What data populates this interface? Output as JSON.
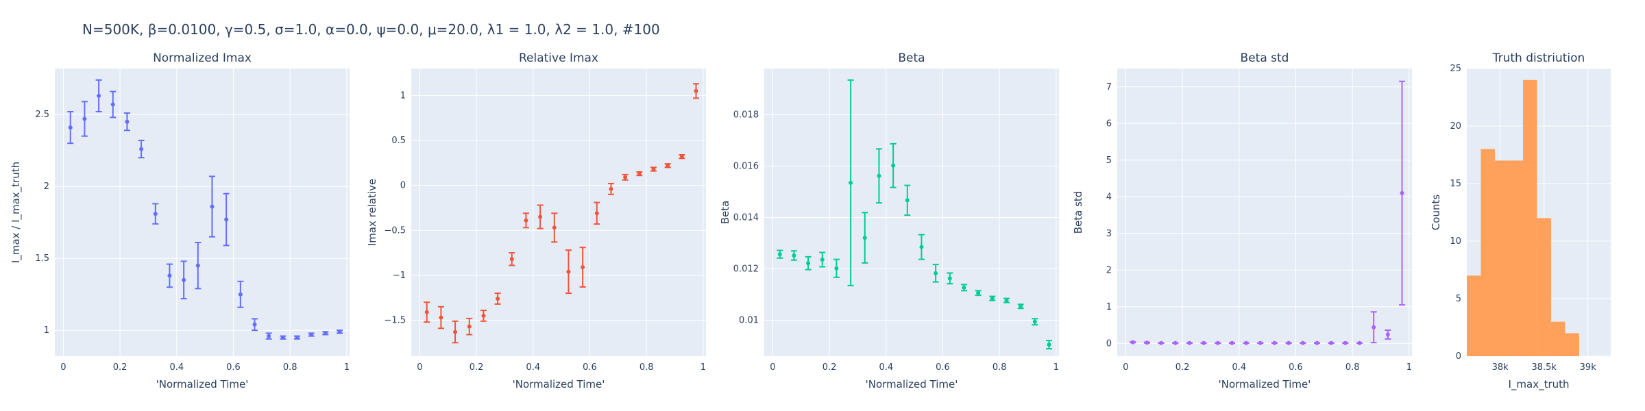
{
  "figure": {
    "suptitle": "N=500K, β=0.0100, γ=0.5, σ=1.0,  α=0.0, ψ=0.0, μ=20.0, λ1 = 1.0, λ2 = 1.0, #100"
  },
  "chart_data": [
    {
      "type": "scatter",
      "title": "Normalized Imax",
      "xlabel": "'Normalized Time'",
      "ylabel": "I_max / I_max_truth",
      "color": "#636efa",
      "xlim": [
        -0.03,
        1.01
      ],
      "ylim": [
        0.82,
        2.82
      ],
      "xticks": [
        0,
        0.2,
        0.4,
        0.6,
        0.8,
        1
      ],
      "xtick_labels": [
        "0",
        "0.2",
        "0.4",
        "0.6",
        "0.8",
        "1"
      ],
      "yticks": [
        1,
        1.5,
        2,
        2.5
      ],
      "ytick_labels": [
        "1",
        "1.5",
        "2",
        "2.5"
      ],
      "x": [
        0.025,
        0.075,
        0.125,
        0.175,
        0.225,
        0.275,
        0.325,
        0.375,
        0.425,
        0.475,
        0.525,
        0.575,
        0.625,
        0.675,
        0.725,
        0.775,
        0.825,
        0.875,
        0.925,
        0.975
      ],
      "y": [
        2.41,
        2.47,
        2.63,
        2.57,
        2.45,
        2.26,
        1.81,
        1.38,
        1.35,
        1.45,
        1.86,
        1.77,
        1.25,
        1.04,
        0.96,
        0.95,
        0.95,
        0.97,
        0.98,
        0.99
      ],
      "error": [
        0.11,
        0.12,
        0.11,
        0.09,
        0.06,
        0.06,
        0.07,
        0.08,
        0.13,
        0.16,
        0.21,
        0.18,
        0.09,
        0.04,
        0.02,
        0.01,
        0.01,
        0.01,
        0.01,
        0.01
      ]
    },
    {
      "type": "scatter",
      "title": "Relative Imax",
      "xlabel": "'Normalized Time'",
      "ylabel": "Imax relative",
      "color": "#ef553b",
      "xlim": [
        -0.03,
        1.01
      ],
      "ylim": [
        -1.9,
        1.3
      ],
      "xticks": [
        0,
        0.2,
        0.4,
        0.6,
        0.8,
        1
      ],
      "xtick_labels": [
        "0",
        "0.2",
        "0.4",
        "0.6",
        "0.8",
        "1"
      ],
      "yticks": [
        -1.5,
        -1,
        -0.5,
        0,
        0.5,
        1
      ],
      "ytick_labels": [
        "−1.5",
        "−1",
        "−0.5",
        "0",
        "0.5",
        "1"
      ],
      "x": [
        0.025,
        0.075,
        0.125,
        0.175,
        0.225,
        0.275,
        0.325,
        0.375,
        0.425,
        0.475,
        0.525,
        0.575,
        0.625,
        0.675,
        0.725,
        0.775,
        0.825,
        0.875,
        0.925,
        0.975
      ],
      "y": [
        -1.41,
        -1.47,
        -1.63,
        -1.57,
        -1.45,
        -1.26,
        -0.82,
        -0.39,
        -0.35,
        -0.47,
        -0.96,
        -0.91,
        -0.31,
        -0.04,
        0.09,
        0.13,
        0.18,
        0.22,
        0.32,
        1.05
      ],
      "error": [
        0.11,
        0.12,
        0.12,
        0.09,
        0.06,
        0.06,
        0.07,
        0.08,
        0.13,
        0.16,
        0.24,
        0.22,
        0.12,
        0.06,
        0.03,
        0.02,
        0.02,
        0.02,
        0.02,
        0.08
      ]
    },
    {
      "type": "scatter",
      "title": "Beta",
      "xlabel": "'Normalized Time'",
      "ylabel": "Beta",
      "color": "#00cc96",
      "xlim": [
        -0.03,
        1.01
      ],
      "ylim": [
        0.0086,
        0.0198
      ],
      "xticks": [
        0,
        0.2,
        0.4,
        0.6,
        0.8,
        1
      ],
      "xtick_labels": [
        "0",
        "0.2",
        "0.4",
        "0.6",
        "0.8",
        "1"
      ],
      "yticks": [
        0.01,
        0.012,
        0.014,
        0.016,
        0.018
      ],
      "ytick_labels": [
        "0.01",
        "0.012",
        "0.014",
        "0.016",
        "0.018"
      ],
      "x": [
        0.025,
        0.075,
        0.125,
        0.175,
        0.225,
        0.275,
        0.325,
        0.375,
        0.425,
        0.475,
        0.525,
        0.575,
        0.625,
        0.675,
        0.725,
        0.775,
        0.825,
        0.875,
        0.925,
        0.975
      ],
      "y": [
        0.01257,
        0.01252,
        0.01222,
        0.01236,
        0.01202,
        0.01535,
        0.01321,
        0.01562,
        0.01602,
        0.01467,
        0.01285,
        0.01183,
        0.01163,
        0.01127,
        0.01106,
        0.01085,
        0.01077,
        0.01054,
        0.00994,
        0.00905
      ],
      "error": [
        0.00015,
        0.00018,
        0.00025,
        0.00028,
        0.00035,
        0.004,
        0.00098,
        0.00105,
        0.00085,
        0.00058,
        0.00048,
        0.00034,
        0.00021,
        0.00012,
        9e-05,
        8e-05,
        8e-05,
        8e-05,
        0.00012,
        0.00016
      ]
    },
    {
      "type": "scatter",
      "title": "Beta std",
      "xlabel": "'Normalized Time'",
      "ylabel": "Beta std",
      "color": "#ab63fa",
      "xlim": [
        -0.03,
        1.01
      ],
      "ylim": [
        -0.35,
        7.5
      ],
      "xticks": [
        0,
        0.2,
        0.4,
        0.6,
        0.8,
        1
      ],
      "xtick_labels": [
        "0",
        "0.2",
        "0.4",
        "0.6",
        "0.8",
        "1"
      ],
      "yticks": [
        0,
        1,
        2,
        3,
        4,
        5,
        6,
        7
      ],
      "ytick_labels": [
        "0",
        "1",
        "2",
        "3",
        "4",
        "5",
        "6",
        "7"
      ],
      "x": [
        0.025,
        0.075,
        0.125,
        0.175,
        0.225,
        0.275,
        0.325,
        0.375,
        0.425,
        0.475,
        0.525,
        0.575,
        0.625,
        0.675,
        0.725,
        0.775,
        0.825,
        0.875,
        0.925,
        0.975
      ],
      "y": [
        0.03,
        0.02,
        0.01,
        0.01,
        0.01,
        0.01,
        0.01,
        0.01,
        0.01,
        0.01,
        0.01,
        0.01,
        0.01,
        0.01,
        0.01,
        0.01,
        0.01,
        0.44,
        0.24,
        4.1
      ],
      "error": [
        0.01,
        0.01,
        0.005,
        0.005,
        0.005,
        0.005,
        0.005,
        0.005,
        0.005,
        0.005,
        0.005,
        0.005,
        0.005,
        0.005,
        0.005,
        0.005,
        0.005,
        0.42,
        0.12,
        3.05
      ]
    },
    {
      "type": "bar",
      "title": "Truth distriution",
      "xlabel": "I_max_truth",
      "ylabel": "Counts",
      "color": "#ffa15a",
      "xlim": [
        37620,
        39260
      ],
      "ylim": [
        0,
        25
      ],
      "xticks": [
        38000,
        38500,
        39000
      ],
      "xtick_labels": [
        "38k",
        "38.5k",
        "39k"
      ],
      "yticks": [
        0,
        5,
        10,
        15,
        20,
        25
      ],
      "ytick_labels": [
        "0",
        "5",
        "10",
        "15",
        "20",
        "25"
      ],
      "bins": [
        [
          37620,
          37780
        ],
        [
          37780,
          37940
        ],
        [
          37940,
          38100
        ],
        [
          38100,
          38260
        ],
        [
          38260,
          38420
        ],
        [
          38420,
          38580
        ],
        [
          38580,
          38740
        ],
        [
          38740,
          38900
        ],
        [
          38900,
          39060
        ],
        [
          39060,
          39220
        ],
        [
          39220,
          39260
        ]
      ],
      "values": [
        7,
        18,
        17,
        17,
        24,
        12,
        3,
        2,
        0,
        0,
        0
      ]
    }
  ]
}
